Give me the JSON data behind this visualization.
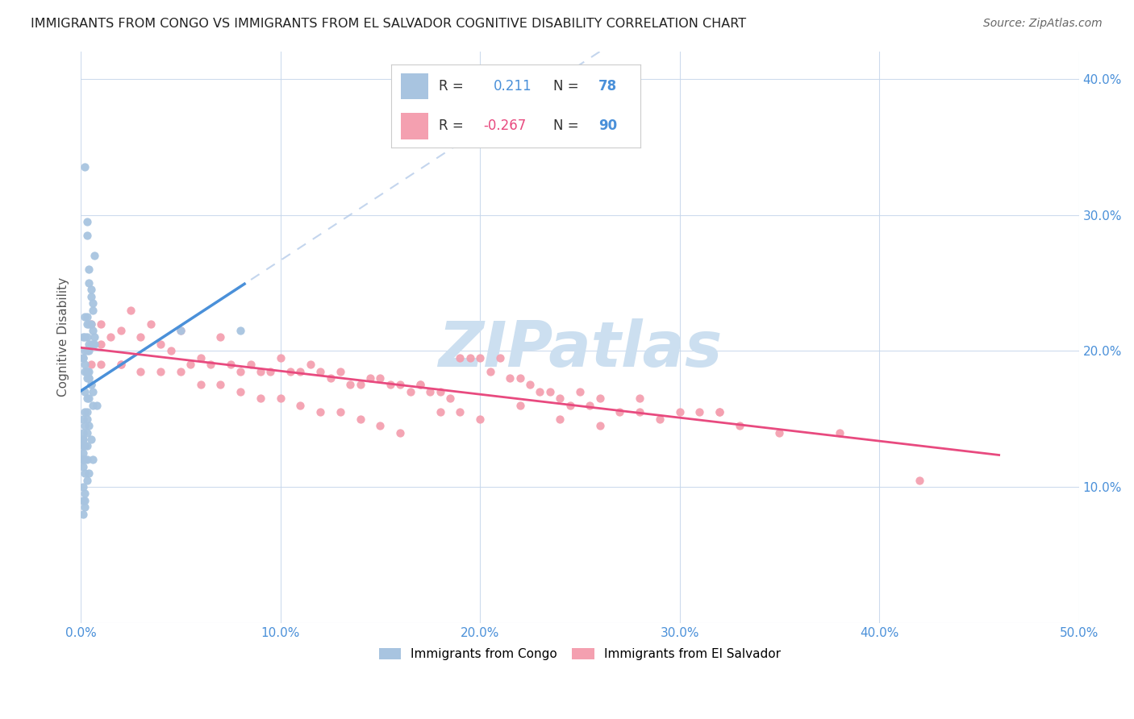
{
  "title": "IMMIGRANTS FROM CONGO VS IMMIGRANTS FROM EL SALVADOR COGNITIVE DISABILITY CORRELATION CHART",
  "source": "Source: ZipAtlas.com",
  "xlim": [
    0.0,
    0.5
  ],
  "ylim": [
    0.0,
    0.42
  ],
  "congo_R": 0.211,
  "congo_N": 78,
  "salvador_R": -0.267,
  "salvador_N": 90,
  "congo_color": "#a8c4e0",
  "salvador_color": "#f4a0b0",
  "congo_line_color": "#4a90d9",
  "salvador_line_color": "#e84a7f",
  "dashed_line_color": "#b0c8e8",
  "watermark_color": "#ccdff0",
  "congo_scatter_x": [
    0.002,
    0.003,
    0.003,
    0.004,
    0.004,
    0.005,
    0.005,
    0.006,
    0.006,
    0.007,
    0.002,
    0.003,
    0.003,
    0.004,
    0.005,
    0.006,
    0.007,
    0.002,
    0.001,
    0.003,
    0.004,
    0.005,
    0.006,
    0.007,
    0.002,
    0.003,
    0.004,
    0.001,
    0.001,
    0.002,
    0.003,
    0.004,
    0.002,
    0.003,
    0.003,
    0.004,
    0.004,
    0.005,
    0.005,
    0.006,
    0.002,
    0.003,
    0.004,
    0.006,
    0.008,
    0.003,
    0.002,
    0.001,
    0.003,
    0.004,
    0.002,
    0.001,
    0.003,
    0.005,
    0.003,
    0.002,
    0.001,
    0.006,
    0.003,
    0.002,
    0.001,
    0.004,
    0.002,
    0.003,
    0.001,
    0.002,
    0.001,
    0.002,
    0.001,
    0.001,
    0.001,
    0.002,
    0.001,
    0.001,
    0.05,
    0.08,
    0.001,
    0.001
  ],
  "congo_scatter_y": [
    0.335,
    0.295,
    0.285,
    0.26,
    0.25,
    0.245,
    0.24,
    0.235,
    0.23,
    0.27,
    0.225,
    0.225,
    0.22,
    0.22,
    0.22,
    0.215,
    0.21,
    0.21,
    0.21,
    0.21,
    0.205,
    0.205,
    0.205,
    0.205,
    0.2,
    0.2,
    0.2,
    0.195,
    0.195,
    0.19,
    0.185,
    0.185,
    0.185,
    0.185,
    0.18,
    0.18,
    0.18,
    0.175,
    0.175,
    0.17,
    0.17,
    0.165,
    0.165,
    0.16,
    0.16,
    0.155,
    0.155,
    0.15,
    0.15,
    0.145,
    0.145,
    0.14,
    0.14,
    0.135,
    0.13,
    0.13,
    0.125,
    0.12,
    0.12,
    0.12,
    0.115,
    0.11,
    0.11,
    0.105,
    0.1,
    0.095,
    0.09,
    0.085,
    0.08,
    0.135,
    0.12,
    0.09,
    0.135,
    0.12,
    0.215,
    0.215,
    0.13,
    0.12
  ],
  "salvador_scatter_x": [
    0.005,
    0.01,
    0.015,
    0.02,
    0.025,
    0.03,
    0.035,
    0.04,
    0.045,
    0.05,
    0.055,
    0.06,
    0.065,
    0.07,
    0.075,
    0.08,
    0.085,
    0.09,
    0.095,
    0.1,
    0.105,
    0.11,
    0.115,
    0.12,
    0.125,
    0.13,
    0.135,
    0.14,
    0.145,
    0.15,
    0.155,
    0.16,
    0.165,
    0.17,
    0.175,
    0.18,
    0.185,
    0.19,
    0.195,
    0.2,
    0.205,
    0.21,
    0.215,
    0.22,
    0.225,
    0.23,
    0.235,
    0.24,
    0.245,
    0.25,
    0.255,
    0.26,
    0.27,
    0.28,
    0.29,
    0.3,
    0.31,
    0.32,
    0.33,
    0.35,
    0.01,
    0.02,
    0.03,
    0.04,
    0.05,
    0.06,
    0.07,
    0.08,
    0.09,
    0.1,
    0.11,
    0.12,
    0.13,
    0.14,
    0.15,
    0.16,
    0.17,
    0.18,
    0.19,
    0.2,
    0.22,
    0.24,
    0.26,
    0.28,
    0.32,
    0.38,
    0.005,
    0.01,
    0.02,
    0.42
  ],
  "salvador_scatter_y": [
    0.22,
    0.22,
    0.21,
    0.215,
    0.23,
    0.21,
    0.22,
    0.205,
    0.2,
    0.215,
    0.19,
    0.195,
    0.19,
    0.21,
    0.19,
    0.185,
    0.19,
    0.185,
    0.185,
    0.195,
    0.185,
    0.185,
    0.19,
    0.185,
    0.18,
    0.185,
    0.175,
    0.175,
    0.18,
    0.18,
    0.175,
    0.175,
    0.17,
    0.175,
    0.17,
    0.17,
    0.165,
    0.195,
    0.195,
    0.195,
    0.185,
    0.195,
    0.18,
    0.18,
    0.175,
    0.17,
    0.17,
    0.165,
    0.16,
    0.17,
    0.16,
    0.165,
    0.155,
    0.155,
    0.15,
    0.155,
    0.155,
    0.155,
    0.145,
    0.14,
    0.205,
    0.19,
    0.185,
    0.185,
    0.185,
    0.175,
    0.175,
    0.17,
    0.165,
    0.165,
    0.16,
    0.155,
    0.155,
    0.15,
    0.145,
    0.14,
    0.175,
    0.155,
    0.155,
    0.15,
    0.16,
    0.15,
    0.145,
    0.165,
    0.155,
    0.14,
    0.19,
    0.19,
    0.19,
    0.105
  ]
}
